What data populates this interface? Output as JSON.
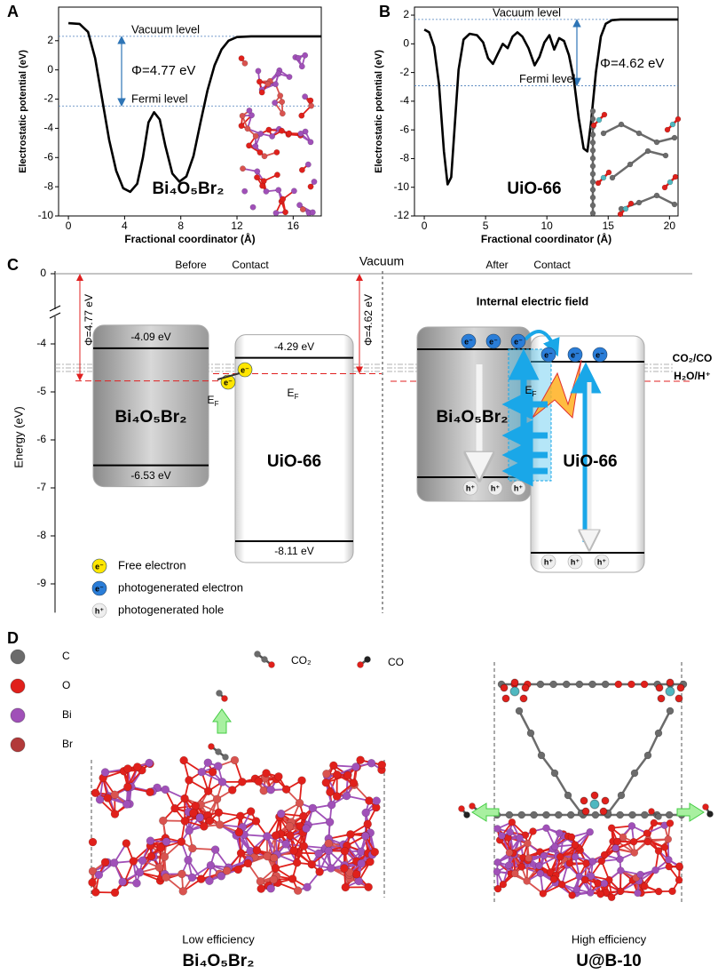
{
  "chart_data": [
    {
      "type": "line",
      "panel": "A",
      "x_label": "Fractional coordinator (Å)",
      "y_label": "Electrostatic potential (eV)",
      "x": [
        0,
        0.8,
        1.4,
        1.9,
        2.4,
        2.9,
        3.4,
        3.9,
        4.4,
        4.9,
        5.3,
        5.7,
        6.1,
        6.5,
        6.9,
        7.4,
        7.9,
        8.4,
        8.9,
        9.4,
        9.9,
        10.4,
        10.9,
        11.4,
        12,
        13,
        18
      ],
      "values": [
        3.2,
        3.15,
        2.6,
        0.8,
        -2,
        -4.8,
        -6.9,
        -8.1,
        -8.35,
        -7.8,
        -6,
        -3.6,
        -2.9,
        -3.4,
        -5.2,
        -7.1,
        -7.65,
        -7.3,
        -5.9,
        -3.6,
        -1.4,
        0.3,
        1.4,
        2.0,
        2.25,
        2.3,
        2.3
      ],
      "color": "#000000",
      "xlim": [
        -0.7,
        18
      ],
      "xticks": [
        0,
        4,
        8,
        12,
        16
      ],
      "ylim": [
        -10,
        4.3
      ],
      "yticks": [
        -10,
        -8,
        -6,
        -4,
        -2,
        0,
        2
      ],
      "reference_lines": [
        {
          "label": "Vacuum level",
          "value": 2.3
        },
        {
          "label": "Fermi level",
          "value": -2.47
        }
      ],
      "annotations": [
        "Φ=4.77 eV",
        "Bi₄O₅Br₂"
      ]
    },
    {
      "type": "line",
      "panel": "B",
      "x_label": "Fractional coordinator (Å)",
      "y_label": "Electrostatic potential (eV)",
      "x": [
        0,
        0.4,
        0.8,
        1.2,
        1.6,
        1.9,
        2.2,
        2.5,
        2.8,
        3.2,
        3.7,
        4.3,
        4.8,
        5.2,
        5.6,
        6.0,
        6.4,
        6.8,
        7.2,
        7.6,
        8.0,
        8.5,
        9.0,
        9.4,
        9.8,
        10.2,
        10.6,
        11.0,
        11.4,
        11.8,
        12.2,
        12.6,
        13.0,
        13.3,
        13.6,
        14.0,
        14.4,
        14.8,
        15.3,
        16,
        20.7
      ],
      "values": [
        1.0,
        0.8,
        -0.2,
        -2.8,
        -7.5,
        -9.8,
        -9.3,
        -5.5,
        -1.8,
        0.3,
        0.7,
        0.6,
        0.1,
        -1.0,
        -1.4,
        -0.7,
        0.0,
        -0.3,
        0.5,
        0.8,
        0.5,
        -0.3,
        -1.5,
        -0.9,
        0.1,
        0.6,
        -0.4,
        0.4,
        0.2,
        -0.8,
        -2.5,
        -5.2,
        -7.3,
        -7.5,
        -5.5,
        -2.0,
        0.5,
        1.4,
        1.65,
        1.7,
        1.7
      ],
      "color": "#000000",
      "xlim": [
        -0.8,
        20.7
      ],
      "xticks": [
        0,
        5,
        10,
        15,
        20
      ],
      "ylim": [
        -12,
        2.56
      ],
      "yticks": [
        -12,
        -10,
        -8,
        -6,
        -4,
        -2,
        0,
        2
      ],
      "reference_lines": [
        {
          "label": "Vacuum level",
          "value": 1.7
        },
        {
          "label": "Fermi level",
          "value": -2.92
        }
      ],
      "annotations": [
        "Φ=4.62 eV",
        "UiO-66"
      ]
    }
  ],
  "energy_diagram": {
    "panel": "C",
    "y_label": "Energy (eV)",
    "ylim": [
      -9.6,
      0.2
    ],
    "yticks": [
      0,
      -4,
      -5,
      -6,
      -7,
      -8,
      -9
    ],
    "vacuum": "Vacuum",
    "before": [
      "Before",
      "Contact"
    ],
    "after": [
      "After",
      "Contact"
    ],
    "materials": [
      {
        "name": "Bi₄O₅Br₂",
        "cb": -4.09,
        "vb": -6.53,
        "cb_label": "-4.09 eV",
        "vb_label": "-6.53 eV",
        "fermi": -4.77,
        "work_function": "Φ=4.77 eV"
      },
      {
        "name": "UiO-66",
        "cb": -4.29,
        "vb": -8.11,
        "cb_label": "-4.29 eV",
        "vb_label": "-8.11 eV",
        "fermi": -4.62,
        "work_function": "Φ=4.62 eV"
      }
    ],
    "fermi_symbol": "E",
    "fermi_subscript": "F",
    "field_label": "Internal electric field",
    "redox": [
      "CO₂/CO",
      "H₂O/H⁺"
    ],
    "electron_symbol": "e⁻",
    "hole_symbol": "h⁺",
    "legend": [
      "Free electron",
      "photogenerated electron",
      "photogenerated hole"
    ]
  },
  "panel_d": {
    "panel": "D",
    "atoms": [
      "C",
      "O",
      "Bi",
      "Br"
    ],
    "molecules": [
      "CO₂",
      "CO"
    ],
    "captions": [
      {
        "note": "Low efficiency",
        "name": "Bi₄O₅Br₂"
      },
      {
        "note": "High efficiency",
        "name": "U@B-10"
      }
    ]
  }
}
